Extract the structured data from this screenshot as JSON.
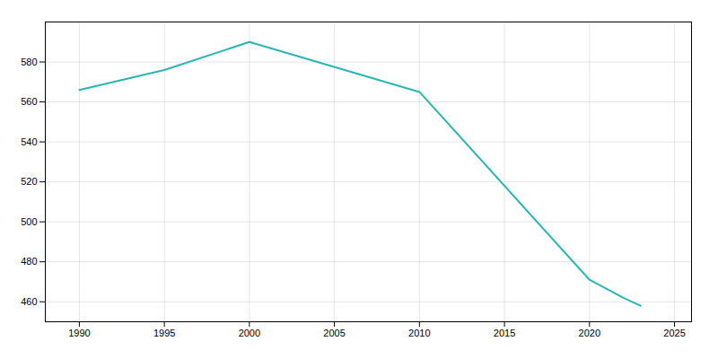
{
  "chart_data": {
    "type": "line",
    "x": [
      1990,
      1995,
      2000,
      2010,
      2020,
      2022,
      2023
    ],
    "values": [
      566,
      576,
      590,
      565,
      471,
      462,
      458
    ],
    "color": "#2ab5b5",
    "xlim": [
      1988,
      2026
    ],
    "ylim": [
      450,
      600
    ],
    "xticks": [
      1990,
      1995,
      2000,
      2005,
      2010,
      2015,
      2020,
      2025
    ],
    "yticks": [
      460,
      480,
      500,
      520,
      540,
      560,
      580
    ],
    "grid": true
  }
}
